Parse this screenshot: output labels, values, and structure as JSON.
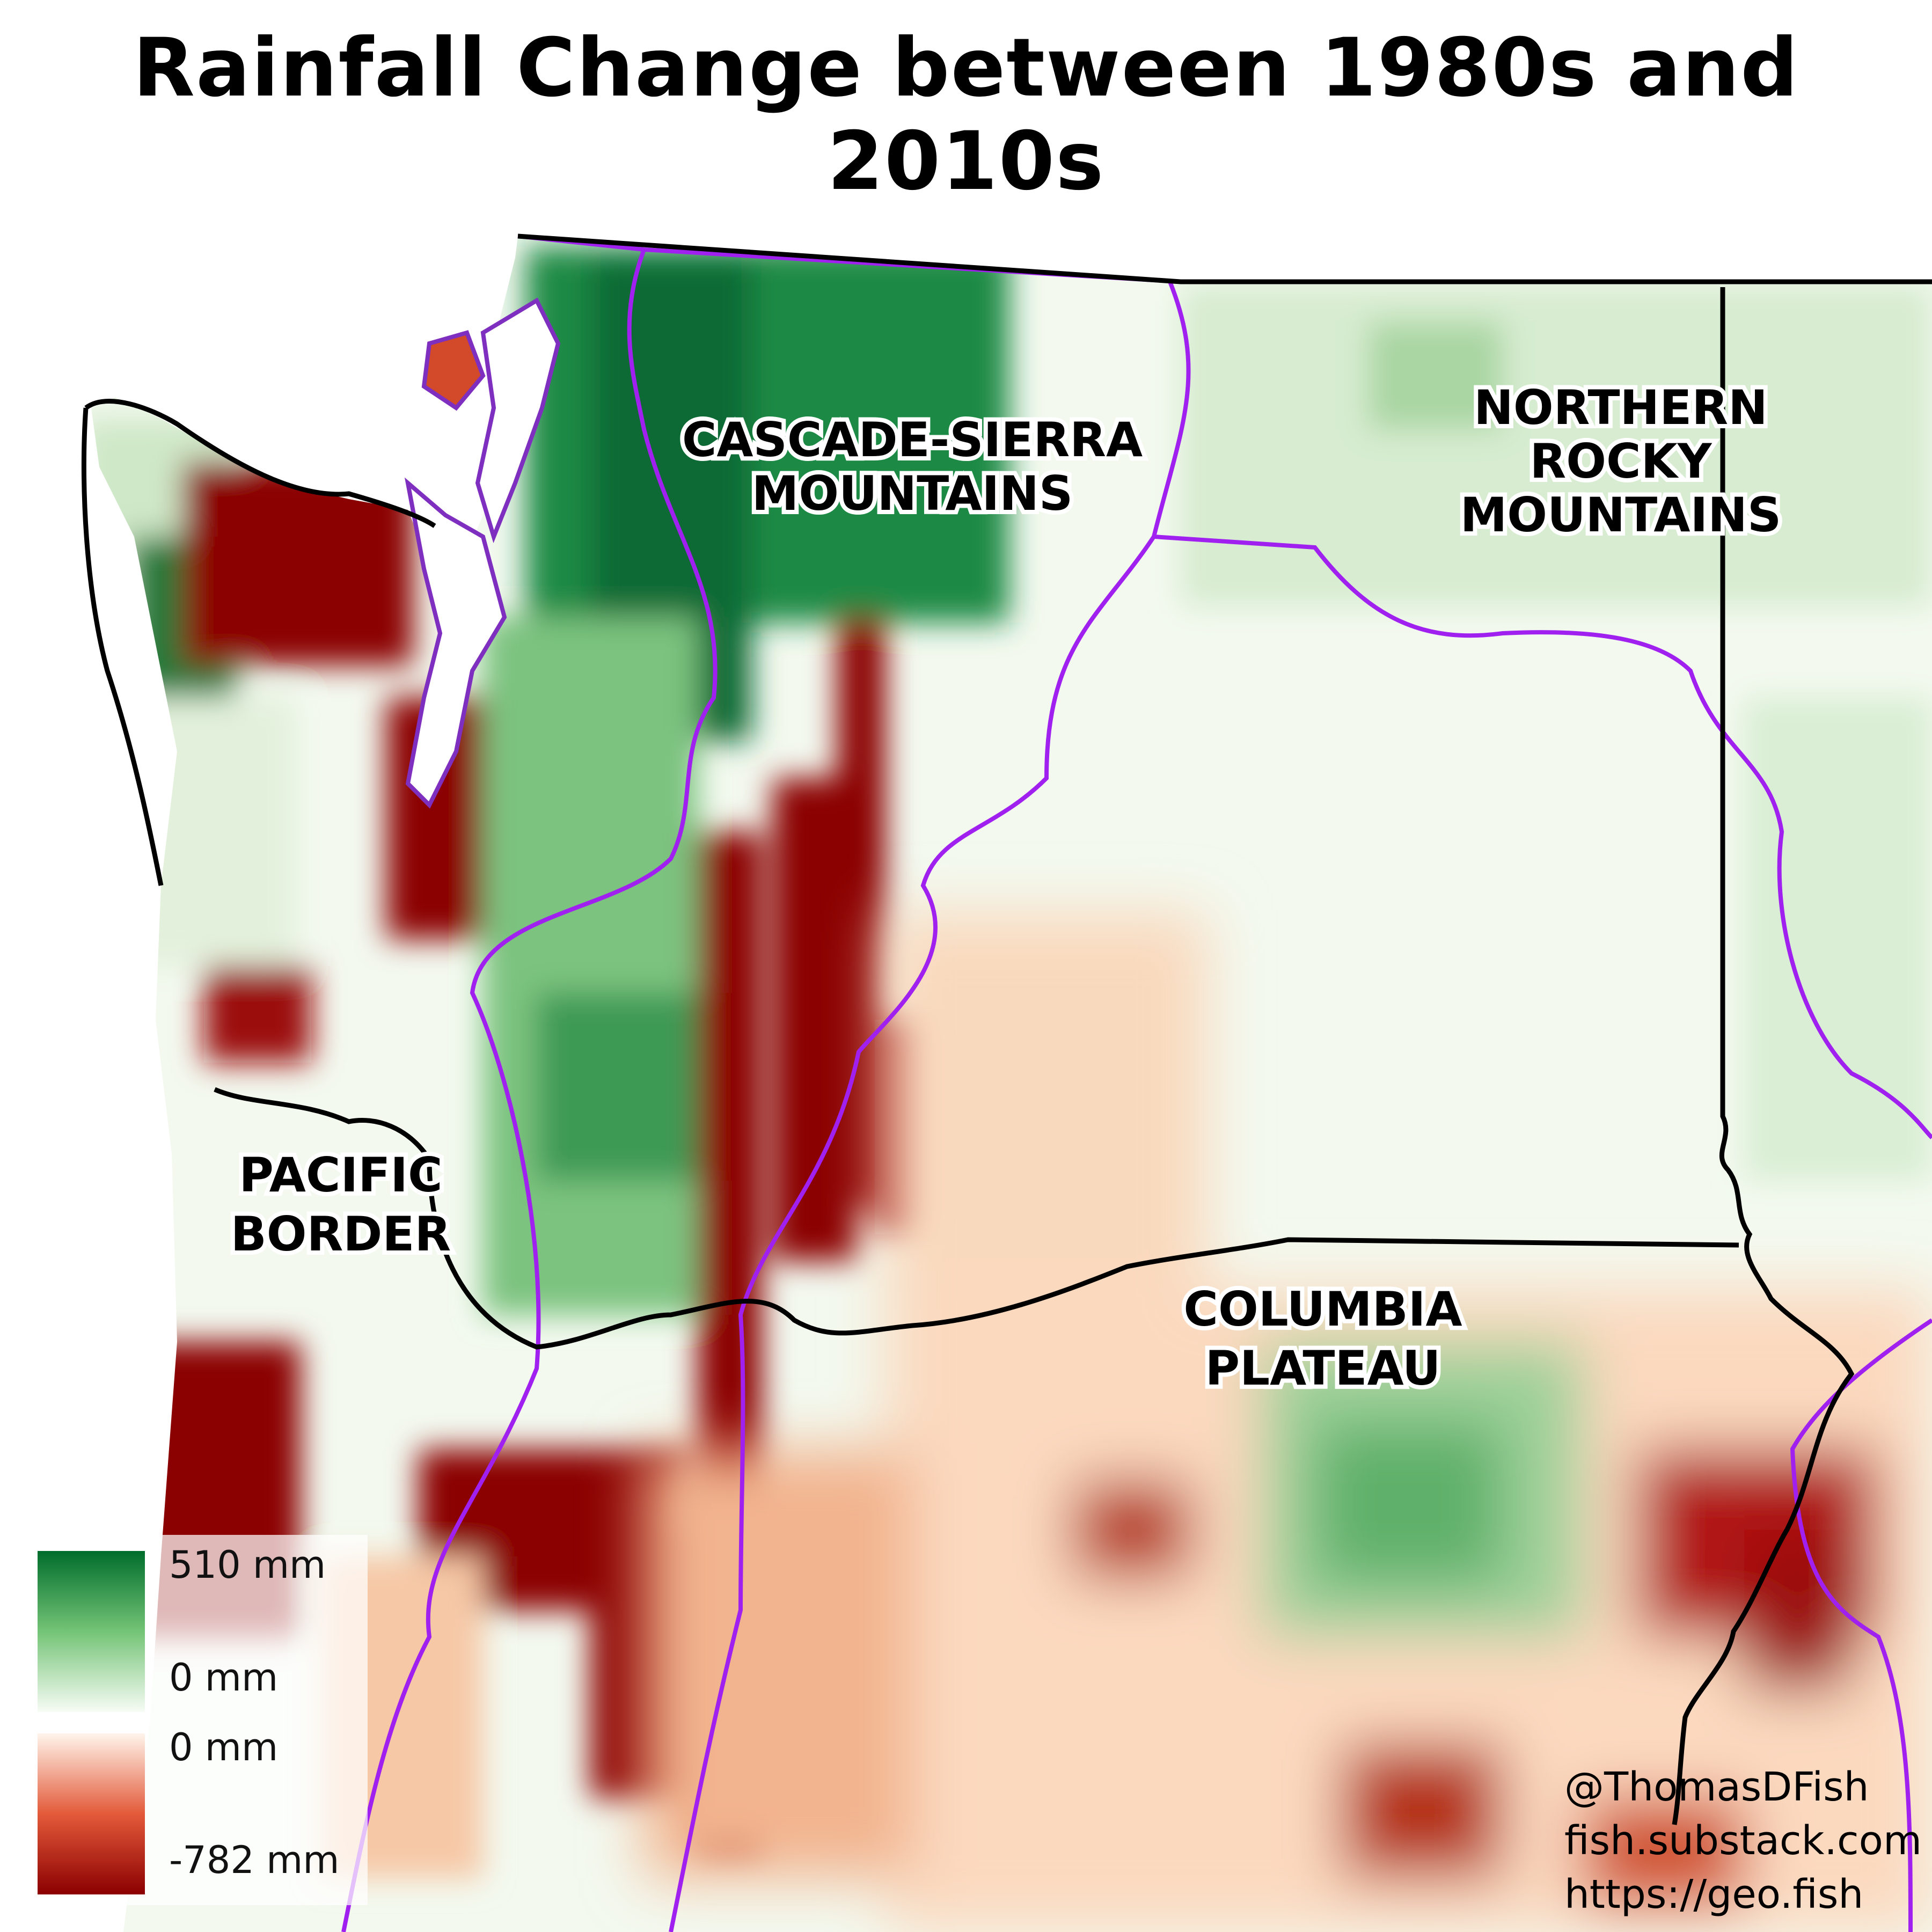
{
  "title": "Rainfall Change between 1980s and 2010s",
  "regions": [
    {
      "id": "cascade",
      "lines": [
        "CASCADE-SIERRA",
        "MOUNTAINS"
      ]
    },
    {
      "id": "rocky",
      "lines": [
        "NORTHERN",
        "ROCKY",
        "MOUNTAINS"
      ]
    },
    {
      "id": "pacific",
      "lines": [
        "PACIFIC",
        "BORDER"
      ]
    },
    {
      "id": "columbia",
      "lines": [
        "COLUMBIA",
        "PLATEAU"
      ]
    }
  ],
  "legend": {
    "positive_max": "510 mm",
    "positive_min": "0 mm",
    "negative_max": "0 mm",
    "negative_min": "-782 mm",
    "colors": {
      "positive_strong": "#006d2c",
      "positive_weak": "#f7fcf5",
      "negative_weak": "#fff5eb",
      "negative_strong": "#8b0000"
    }
  },
  "credits": [
    "@ThomasDFish",
    "fish.substack.com",
    "https://geo.fish"
  ],
  "colors": {
    "ecoregion_boundary": "#a020f0",
    "state_boundary": "#000000"
  }
}
